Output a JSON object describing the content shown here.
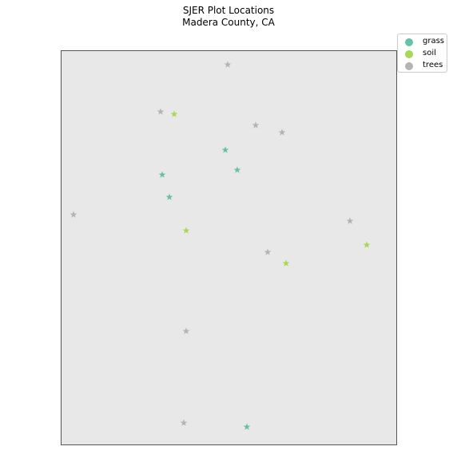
{
  "chart_data": {
    "type": "scatter",
    "title": "SJER Plot Locations",
    "subtitle": "Madera County, CA",
    "xlabel": "",
    "ylabel": "",
    "grid": false,
    "axes_visible": false,
    "marker": "star",
    "background_color": "#e8e8e8",
    "legend_placement": "upper-right-outside",
    "xlim": [
      0,
      420
    ],
    "ylim": [
      0,
      494
    ],
    "series": [
      {
        "name": "grass",
        "color": "#66c2a5",
        "points": [
          {
            "x": 206,
            "y": 369
          },
          {
            "x": 221,
            "y": 344
          },
          {
            "x": 127,
            "y": 338
          },
          {
            "x": 136,
            "y": 310
          },
          {
            "x": 233,
            "y": 22
          }
        ]
      },
      {
        "name": "soil",
        "color": "#a6d854",
        "points": [
          {
            "x": 142,
            "y": 414
          },
          {
            "x": 157,
            "y": 268
          },
          {
            "x": 383,
            "y": 250
          },
          {
            "x": 282,
            "y": 227
          }
        ]
      },
      {
        "name": "trees",
        "color": "#b3b3b3",
        "points": [
          {
            "x": 209,
            "y": 476
          },
          {
            "x": 125,
            "y": 417
          },
          {
            "x": 244,
            "y": 400
          },
          {
            "x": 277,
            "y": 391
          },
          {
            "x": 16,
            "y": 288
          },
          {
            "x": 362,
            "y": 280
          },
          {
            "x": 259,
            "y": 241
          },
          {
            "x": 157,
            "y": 142
          },
          {
            "x": 154,
            "y": 27
          }
        ]
      }
    ]
  }
}
